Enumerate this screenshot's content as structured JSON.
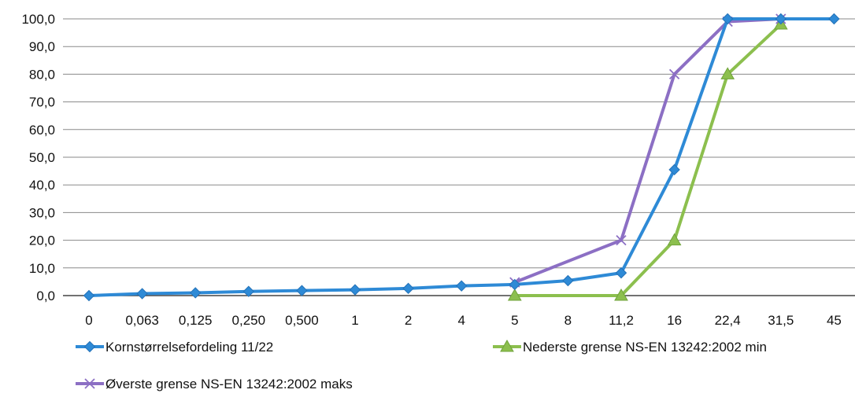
{
  "chart_data": {
    "type": "line",
    "title": "",
    "xlabel": "",
    "ylabel": "",
    "categories": [
      "0",
      "0,063",
      "0,125",
      "0,250",
      "0,500",
      "1",
      "2",
      "4",
      "5",
      "8",
      "11,2",
      "16",
      "22,4",
      "31,5",
      "45"
    ],
    "ylim": [
      0,
      100
    ],
    "yticks": [
      "0,0",
      "10,0",
      "20,0",
      "30,0",
      "40,0",
      "50,0",
      "60,0",
      "70,0",
      "80,0",
      "90,0",
      "100,0"
    ],
    "grid": true,
    "legend_position": "bottom",
    "series": [
      {
        "name": "Kornstørrelsefordeling 11/22",
        "marker": "diamond",
        "color": "#2e8ad6",
        "values": [
          0.0,
          0.7,
          1.0,
          1.5,
          1.8,
          2.1,
          2.6,
          3.5,
          4.0,
          5.4,
          8.2,
          45.5,
          100.0,
          100.0,
          100.0
        ]
      },
      {
        "name": "Nederste grense NS-EN 13242:2002 min",
        "marker": "triangle",
        "color": "#8cbf4e",
        "values": [
          null,
          null,
          null,
          null,
          null,
          null,
          null,
          null,
          0.0,
          null,
          0.0,
          20.0,
          80.0,
          98.0,
          null
        ]
      },
      {
        "name": "Øverste grense NS-EN 13242:2002 maks",
        "marker": "x",
        "color": "#8c6fc4",
        "values": [
          null,
          null,
          null,
          null,
          null,
          null,
          null,
          null,
          4.8,
          null,
          20.0,
          80.0,
          99.0,
          100.0,
          null
        ]
      }
    ]
  }
}
